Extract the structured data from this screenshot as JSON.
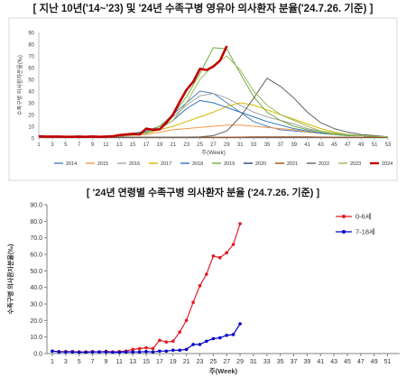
{
  "chart_data": [
    {
      "type": "line",
      "title": "[ 지난 10년('14~'23) 및 '24년 수족구병 영유아 의사환자 분율('24.7.26. 기준) ]",
      "xlabel": "주(Week)",
      "ylabel": "수족구병 의사환자분율(‰)",
      "xlim": [
        1,
        53
      ],
      "ylim": [
        0,
        90
      ],
      "xticks": [
        "1",
        "3",
        "5",
        "7",
        "9",
        "11",
        "13",
        "15",
        "17",
        "19",
        "21",
        "23",
        "25",
        "27",
        "29",
        "31",
        "33",
        "35",
        "37",
        "39",
        "41",
        "43",
        "45",
        "47",
        "49",
        "51",
        "53"
      ],
      "yticks": [
        "0",
        "10",
        "20",
        "30",
        "40",
        "50",
        "60",
        "70",
        "80",
        "90"
      ],
      "grid": false,
      "legend_position": "bottom",
      "series": [
        {
          "name": "2014",
          "color": "#4f81bd",
          "points": [
            [
              1,
              1.5
            ],
            [
              5,
              1
            ],
            [
              9,
              1
            ],
            [
              13,
              2
            ],
            [
              17,
              6
            ],
            [
              19,
              10
            ],
            [
              21,
              20
            ],
            [
              23,
              30
            ],
            [
              25,
              40
            ],
            [
              27,
              38
            ],
            [
              29,
              30
            ],
            [
              31,
              22
            ],
            [
              33,
              14
            ],
            [
              35,
              10
            ],
            [
              37,
              7
            ],
            [
              39,
              6
            ],
            [
              41,
              5
            ],
            [
              43,
              4
            ],
            [
              45,
              3
            ],
            [
              47,
              3
            ],
            [
              49,
              2
            ],
            [
              51,
              2
            ],
            [
              53,
              1
            ]
          ]
        },
        {
          "name": "2015",
          "color": "#f79646",
          "points": [
            [
              1,
              1
            ],
            [
              5,
              1
            ],
            [
              9,
              1
            ],
            [
              13,
              1.5
            ],
            [
              17,
              3
            ],
            [
              19,
              5
            ],
            [
              21,
              7
            ],
            [
              23,
              8
            ],
            [
              25,
              9
            ],
            [
              27,
              10
            ],
            [
              29,
              11
            ],
            [
              31,
              11
            ],
            [
              33,
              10
            ],
            [
              35,
              9
            ],
            [
              37,
              8
            ],
            [
              39,
              7
            ],
            [
              41,
              5
            ],
            [
              43,
              4
            ],
            [
              45,
              3
            ],
            [
              47,
              2
            ],
            [
              49,
              2
            ],
            [
              51,
              1
            ],
            [
              53,
              1
            ]
          ]
        },
        {
          "name": "2016",
          "color": "#a5a5a5",
          "points": [
            [
              1,
              1
            ],
            [
              5,
              1
            ],
            [
              9,
              1
            ],
            [
              13,
              2
            ],
            [
              17,
              5
            ],
            [
              19,
              10
            ],
            [
              21,
              18
            ],
            [
              23,
              28
            ],
            [
              25,
              36
            ],
            [
              27,
              38
            ],
            [
              29,
              34
            ],
            [
              31,
              28
            ],
            [
              33,
              22
            ],
            [
              35,
              18
            ],
            [
              37,
              15
            ],
            [
              39,
              12
            ],
            [
              41,
              8
            ],
            [
              43,
              6
            ],
            [
              45,
              4
            ],
            [
              47,
              3
            ],
            [
              49,
              2
            ],
            [
              51,
              1.5
            ],
            [
              53,
              1
            ]
          ]
        },
        {
          "name": "2017",
          "color": "#d4b900",
          "points": [
            [
              1,
              1
            ],
            [
              5,
              1
            ],
            [
              9,
              1
            ],
            [
              13,
              1.5
            ],
            [
              17,
              4
            ],
            [
              19,
              7
            ],
            [
              21,
              10
            ],
            [
              23,
              14
            ],
            [
              25,
              18
            ],
            [
              27,
              22
            ],
            [
              29,
              27
            ],
            [
              31,
              30
            ],
            [
              33,
              28
            ],
            [
              35,
              24
            ],
            [
              37,
              20
            ],
            [
              39,
              16
            ],
            [
              41,
              12
            ],
            [
              43,
              8
            ],
            [
              45,
              5
            ],
            [
              47,
              3
            ],
            [
              49,
              2
            ],
            [
              51,
              1.5
            ],
            [
              53,
              1
            ]
          ]
        },
        {
          "name": "2018",
          "color": "#2e75b6",
          "points": [
            [
              1,
              1
            ],
            [
              5,
              1
            ],
            [
              9,
              1
            ],
            [
              13,
              1.5
            ],
            [
              17,
              4
            ],
            [
              19,
              8
            ],
            [
              21,
              15
            ],
            [
              23,
              25
            ],
            [
              25,
              32
            ],
            [
              27,
              30
            ],
            [
              29,
              26
            ],
            [
              31,
              22
            ],
            [
              33,
              18
            ],
            [
              35,
              14
            ],
            [
              37,
              11
            ],
            [
              39,
              8
            ],
            [
              41,
              6
            ],
            [
              43,
              4
            ],
            [
              45,
              3
            ],
            [
              47,
              2
            ],
            [
              49,
              2
            ],
            [
              51,
              1
            ],
            [
              53,
              1
            ]
          ]
        },
        {
          "name": "2019",
          "color": "#70ad47",
          "points": [
            [
              1,
              1
            ],
            [
              5,
              1
            ],
            [
              9,
              1
            ],
            [
              13,
              2
            ],
            [
              17,
              5
            ],
            [
              19,
              10
            ],
            [
              21,
              20
            ],
            [
              23,
              35
            ],
            [
              25,
              55
            ],
            [
              27,
              77
            ],
            [
              29,
              76
            ],
            [
              31,
              55
            ],
            [
              33,
              35
            ],
            [
              35,
              22
            ],
            [
              37,
              15
            ],
            [
              39,
              10
            ],
            [
              41,
              7
            ],
            [
              43,
              5
            ],
            [
              45,
              3
            ],
            [
              47,
              2
            ],
            [
              49,
              2
            ],
            [
              51,
              1
            ],
            [
              53,
              1
            ]
          ]
        },
        {
          "name": "2020",
          "color": "#264478",
          "points": [
            [
              1,
              1.5
            ],
            [
              5,
              1.5
            ],
            [
              9,
              1
            ],
            [
              13,
              0.5
            ],
            [
              17,
              0.5
            ],
            [
              21,
              0.5
            ],
            [
              25,
              0.5
            ],
            [
              29,
              0.5
            ],
            [
              33,
              0.5
            ],
            [
              37,
              0.5
            ],
            [
              41,
              0.5
            ],
            [
              45,
              0.5
            ],
            [
              49,
              0.5
            ],
            [
              53,
              0.5
            ]
          ]
        },
        {
          "name": "2021",
          "color": "#9e480e",
          "points": [
            [
              1,
              0.5
            ],
            [
              5,
              0.5
            ],
            [
              9,
              0.5
            ],
            [
              13,
              0.5
            ],
            [
              17,
              0.5
            ],
            [
              21,
              0.5
            ],
            [
              25,
              0.5
            ],
            [
              29,
              0.5
            ],
            [
              33,
              1
            ],
            [
              37,
              1
            ],
            [
              41,
              1
            ],
            [
              45,
              0.5
            ],
            [
              49,
              0.5
            ],
            [
              53,
              0.5
            ]
          ]
        },
        {
          "name": "2022",
          "color": "#636363",
          "points": [
            [
              1,
              0.5
            ],
            [
              5,
              0.5
            ],
            [
              9,
              0.5
            ],
            [
              13,
              0.5
            ],
            [
              17,
              0.5
            ],
            [
              21,
              0.5
            ],
            [
              25,
              1
            ],
            [
              27,
              2
            ],
            [
              29,
              6
            ],
            [
              31,
              18
            ],
            [
              33,
              34
            ],
            [
              35,
              51
            ],
            [
              37,
              44
            ],
            [
              39,
              34
            ],
            [
              41,
              22
            ],
            [
              43,
              13
            ],
            [
              45,
              8
            ],
            [
              47,
              5
            ],
            [
              49,
              3
            ],
            [
              51,
              2
            ],
            [
              53,
              1
            ]
          ]
        },
        {
          "name": "2023",
          "color": "#9bbb59",
          "points": [
            [
              1,
              1
            ],
            [
              5,
              1
            ],
            [
              9,
              1
            ],
            [
              13,
              1.5
            ],
            [
              17,
              4
            ],
            [
              19,
              8
            ],
            [
              21,
              15
            ],
            [
              23,
              30
            ],
            [
              25,
              50
            ],
            [
              27,
              62
            ],
            [
              29,
              70
            ],
            [
              31,
              58
            ],
            [
              33,
              40
            ],
            [
              35,
              28
            ],
            [
              37,
              20
            ],
            [
              39,
              15
            ],
            [
              41,
              10
            ],
            [
              43,
              6
            ],
            [
              45,
              4
            ],
            [
              47,
              3
            ],
            [
              49,
              2
            ],
            [
              51,
              1.5
            ],
            [
              53,
              1
            ]
          ]
        },
        {
          "name": "2024",
          "color": "#c00000",
          "bold": true,
          "points": [
            [
              1,
              1.5
            ],
            [
              2,
              1.2
            ],
            [
              3,
              1.2
            ],
            [
              4,
              1.2
            ],
            [
              5,
              1
            ],
            [
              6,
              1
            ],
            [
              7,
              1.2
            ],
            [
              8,
              1
            ],
            [
              9,
              1.3
            ],
            [
              10,
              1
            ],
            [
              11,
              1.2
            ],
            [
              12,
              1.5
            ],
            [
              13,
              2.5
            ],
            [
              14,
              3
            ],
            [
              15,
              3.5
            ],
            [
              16,
              3
            ],
            [
              17,
              8
            ],
            [
              18,
              7
            ],
            [
              19,
              7.5
            ],
            [
              20,
              13
            ],
            [
              21,
              20
            ],
            [
              22,
              31
            ],
            [
              23,
              41
            ],
            [
              24,
              48
            ],
            [
              25,
              59
            ],
            [
              26,
              58
            ],
            [
              27,
              61
            ],
            [
              28,
              66
            ],
            [
              29,
              78.5
            ]
          ]
        }
      ]
    },
    {
      "type": "line",
      "title": "[ '24년 연령별 수족구병 의사환자 분율 ('24.7.26. 기준) ]",
      "xlabel": "주(Week)",
      "ylabel": "수족구병 의사환자분율(‰)",
      "xlim": [
        1,
        52
      ],
      "ylim": [
        0,
        90
      ],
      "xticks": [
        "1",
        "3",
        "5",
        "7",
        "9",
        "11",
        "13",
        "15",
        "17",
        "19",
        "21",
        "23",
        "25",
        "27",
        "29",
        "31",
        "33",
        "35",
        "37",
        "39",
        "41",
        "43",
        "45",
        "47",
        "49",
        "51"
      ],
      "yticks": [
        "0.0",
        "10.0",
        "20.0",
        "30.0",
        "40.0",
        "50.0",
        "60.0",
        "70.0",
        "80.0",
        "90.0"
      ],
      "grid": false,
      "legend_position": "right",
      "series": [
        {
          "name": "0-6세",
          "color": "#e31b23",
          "marker": "circle",
          "values": [
            1.5,
            1.2,
            1.2,
            1.2,
            1.0,
            1.0,
            1.2,
            1.0,
            1.3,
            1.0,
            1.2,
            1.5,
            2.5,
            3.0,
            3.5,
            3.0,
            8.0,
            7.0,
            7.5,
            13.0,
            20.0,
            31.0,
            41.0,
            48.0,
            59.0,
            58.0,
            61.0,
            66.0,
            78.5
          ]
        },
        {
          "name": "7-18세",
          "color": "#0000c8",
          "marker": "circle",
          "values": [
            1.5,
            1.0,
            1.0,
            1.0,
            0.8,
            0.8,
            1.0,
            1.0,
            1.0,
            0.8,
            0.8,
            1.0,
            1.0,
            1.0,
            1.2,
            1.0,
            1.5,
            1.5,
            2.0,
            2.0,
            2.5,
            5.5,
            5.5,
            7.5,
            9.0,
            9.5,
            11.0,
            11.5,
            18.0
          ]
        }
      ]
    }
  ]
}
